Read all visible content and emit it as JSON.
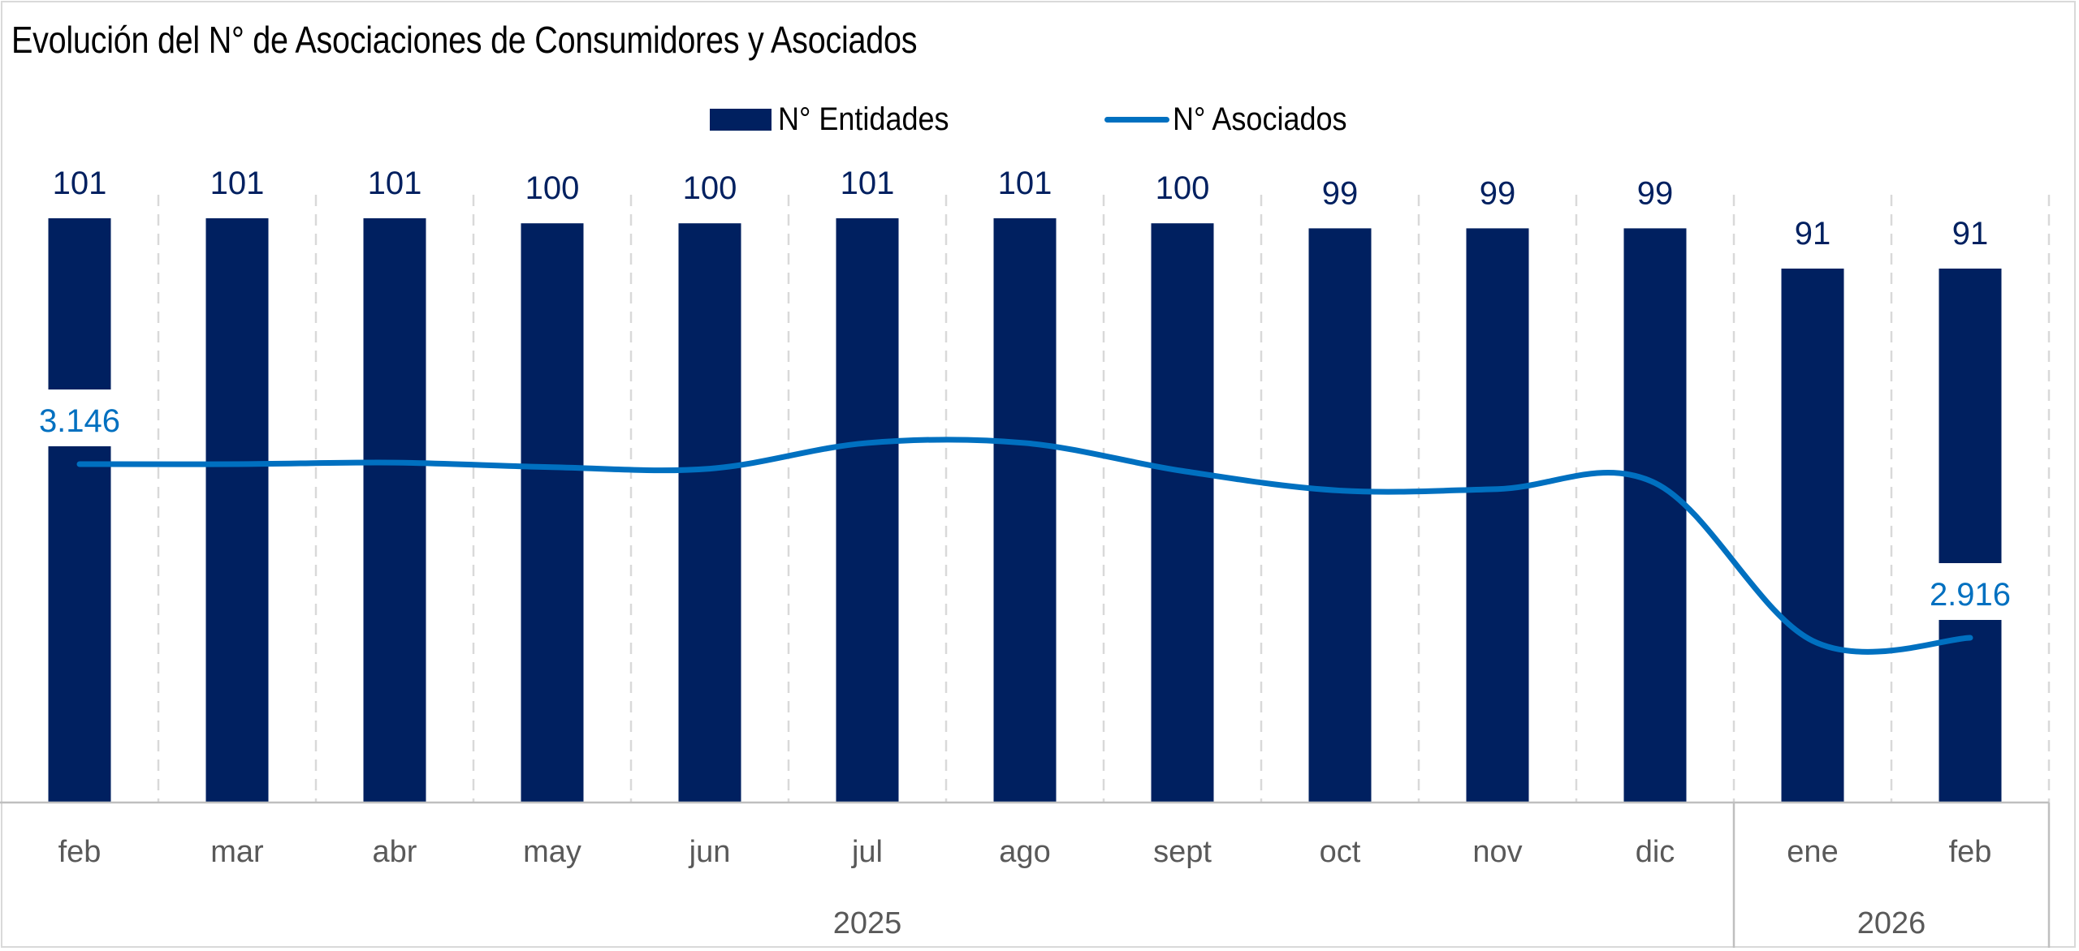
{
  "colors": {
    "bars": "#002060",
    "line": "#0070c0",
    "grid": "#d9d9d9",
    "axis": "#bfbfbf",
    "axis_text": "#595959"
  },
  "legend": {
    "bar_label": "N° Entidades",
    "line_label": "N° Asociados",
    "bar_icon": "filled-square",
    "line_icon": "line-segment"
  },
  "chart_data": {
    "type": "bar+line",
    "title": "Evolución del N° de Asociaciones de Consumidores y Asociados",
    "categories": [
      "feb",
      "mar",
      "abr",
      "may",
      "jun",
      "jul",
      "ago",
      "sept",
      "oct",
      "nov",
      "dic",
      "ene",
      "feb"
    ],
    "groups": [
      {
        "label": "2025",
        "count": 11
      },
      {
        "label": "2026",
        "count": 2
      }
    ],
    "series": [
      {
        "name": "N° Entidades",
        "type": "bar",
        "axis": "primary",
        "values": [
          101,
          101,
          101,
          100,
          100,
          101,
          101,
          100,
          99,
          99,
          99,
          91,
          91
        ],
        "data_labels": [
          "101",
          "101",
          "101",
          "100",
          "100",
          "101",
          "101",
          "100",
          "99",
          "99",
          "99",
          "91",
          "91"
        ]
      },
      {
        "name": "N° Asociados",
        "type": "line",
        "smooth": true,
        "axis": "secondary",
        "values": [
          3146,
          3146,
          3148,
          3142,
          3140,
          3174,
          3174,
          3137,
          3111,
          3113,
          3121,
          2912,
          2916
        ],
        "data_labels": [
          "3.146",
          "",
          "",
          "",
          "",
          "",
          "",
          "",
          "",
          "",
          "",
          "",
          "2.916"
        ]
      }
    ],
    "xlabel": "",
    "ylabel": "",
    "grid": "vertical-dashed",
    "legend_position": "top"
  }
}
